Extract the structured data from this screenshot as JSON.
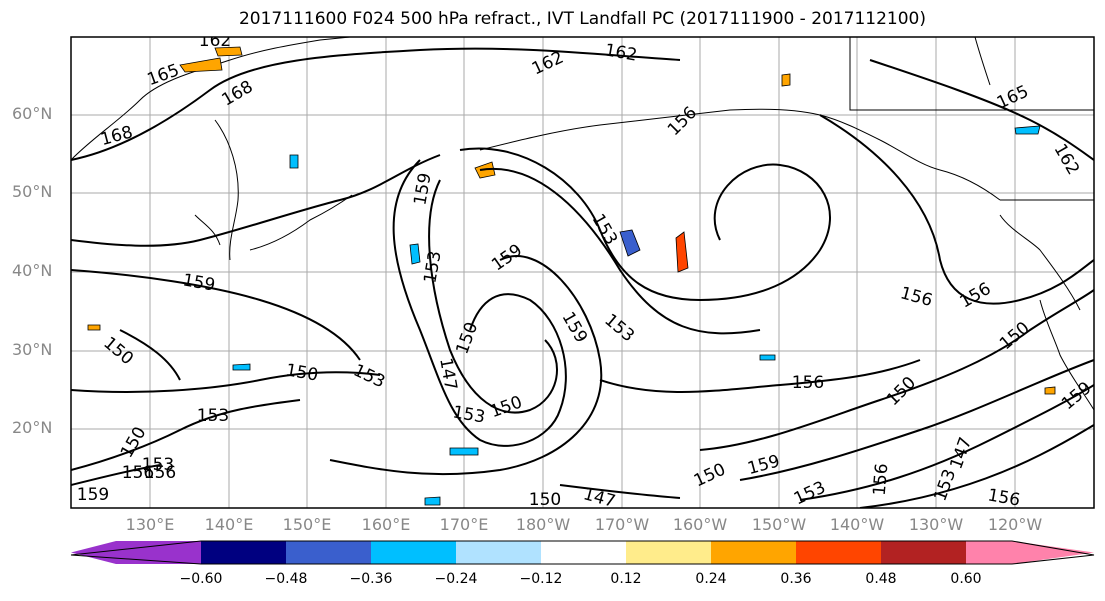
{
  "title": "2017111600 F024 500 hPa refract., IVT Landfall PC (2017111900 - 2017112100)",
  "map": {
    "lat_ticks": [
      "60°N",
      "50°N",
      "40°N",
      "30°N",
      "20°N"
    ],
    "lon_ticks": [
      "130°E",
      "140°E",
      "150°E",
      "160°E",
      "170°E",
      "180°W",
      "170°W",
      "160°W",
      "150°W",
      "140°W",
      "130°W",
      "120°W"
    ],
    "contour_labels": [
      "162",
      "165",
      "168",
      "162",
      "162",
      "168",
      "165",
      "156",
      "162",
      "159",
      "153",
      "159",
      "153",
      "159",
      "150",
      "159",
      "153",
      "156",
      "156",
      "150",
      "150",
      "153",
      "150",
      "147",
      "156",
      "150",
      "153",
      "153",
      "150",
      "150",
      "153",
      "156",
      "156",
      "159",
      "150",
      "147",
      "150",
      "159",
      "153",
      "156",
      "147",
      "153",
      "156",
      "159"
    ],
    "contour_color": "#000000",
    "grid_color": "#aaaaaa",
    "gridlines": true
  },
  "colorbar": {
    "colors": [
      "#9932cc",
      "#000080",
      "#3a5fcd",
      "#00bfff",
      "#b0e2ff",
      "#ffffff",
      "#ffec8b",
      "#ffa500",
      "#ff4500",
      "#b22222",
      "#ff82ab"
    ],
    "tick_labels": [
      "−0.60",
      "−0.48",
      "−0.36",
      "−0.24",
      "−0.12",
      "0.12",
      "0.24",
      "0.36",
      "0.48",
      "0.60"
    ],
    "extend": "both"
  }
}
